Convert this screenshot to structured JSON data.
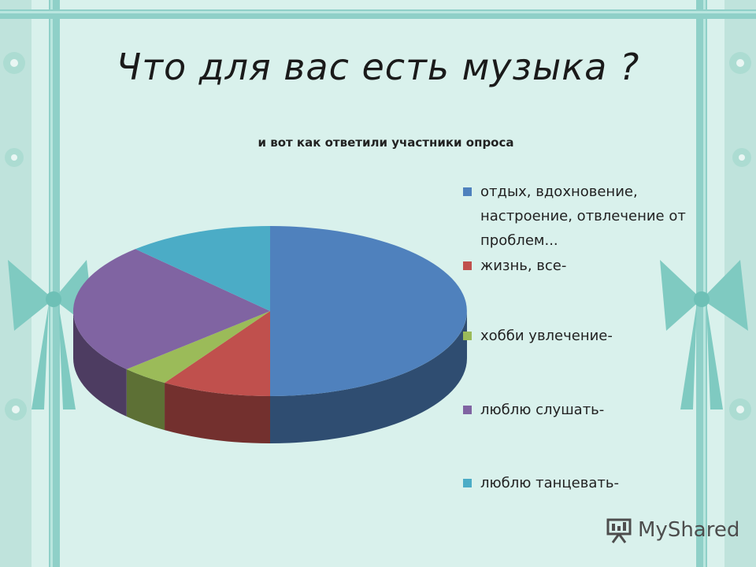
{
  "slide": {
    "title": "Что для вас есть музыка ?"
  },
  "watermark": {
    "text": "MyShared",
    "icon": "presentation-board-icon"
  },
  "chart_data": {
    "type": "pie",
    "style": "3d",
    "title": "и вот как ответили участники опроса",
    "legend_position": "right",
    "categories": [
      "отдых, вдохновение, настроение, отвлечение от проблем...",
      "жизнь, все-",
      "хобби увлечение-",
      "люблю слушать-",
      "люблю танцевать-"
    ],
    "values": [
      50,
      9,
      4,
      25,
      12
    ],
    "colors": [
      "#4f81bd",
      "#c0504d",
      "#9bbb59",
      "#8064a2",
      "#4bacc6"
    ]
  }
}
